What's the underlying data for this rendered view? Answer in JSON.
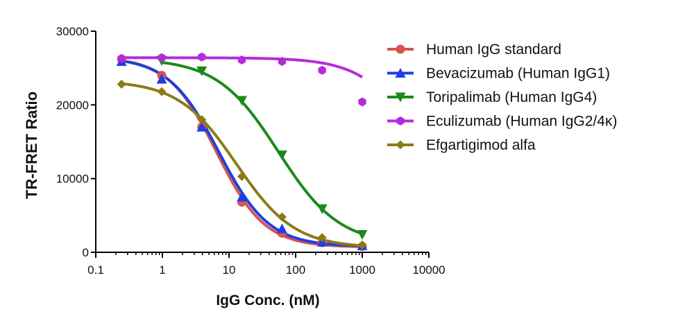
{
  "chart_data": {
    "type": "line",
    "xscale": "log",
    "xlabel": "IgG Conc. (nM)",
    "ylabel": "TR-FRET Ratio",
    "xlim": [
      0.1,
      10000
    ],
    "ylim": [
      0,
      30000
    ],
    "xticks": [
      0.1,
      1,
      10,
      100,
      1000,
      10000
    ],
    "xtick_labels": [
      "0.1",
      "1",
      "10",
      "100",
      "1000",
      "10000"
    ],
    "yticks": [
      0,
      10000,
      20000,
      30000
    ],
    "ytick_labels": [
      "0",
      "10000",
      "20000",
      "30000"
    ],
    "grid": false,
    "legend_position": "top-right",
    "x": [
      0.244,
      0.977,
      3.9,
      15.6,
      62.5,
      250,
      1000
    ],
    "series": [
      {
        "name": "Human IgG standard",
        "color": "#d9534f",
        "marker": "circle",
        "values": [
          26200,
          24000,
          17000,
          6800,
          2600,
          1300,
          800
        ],
        "fit": {
          "top": 26500,
          "bottom": 700,
          "ec50": 6.5,
          "hill": 1.2
        }
      },
      {
        "name": "Bevacizumab (Human IgG1)",
        "color": "#1f3fe0",
        "marker": "triangle-up",
        "values": [
          25900,
          23500,
          17000,
          7500,
          3200,
          1400,
          900
        ],
        "fit": {
          "top": 26500,
          "bottom": 800,
          "ec50": 7.0,
          "hill": 1.15
        }
      },
      {
        "name": "Toripalimab (Human IgG4)",
        "color": "#1a8a1a",
        "marker": "triangle-down",
        "values": [
          null,
          26000,
          24600,
          20600,
          13200,
          5900,
          2400
        ],
        "fit": {
          "top": 26300,
          "bottom": 1000,
          "ec50": 55,
          "hill": 0.95
        }
      },
      {
        "name": "Eculizumab (Human IgG2/4κ)",
        "color": "#b52bd9",
        "marker": "hexagon",
        "values": [
          26300,
          26400,
          26500,
          26100,
          25900,
          24700,
          20400
        ],
        "fit": {
          "top": 26400,
          "bottom": 0,
          "ec50": 9000,
          "hill": 1.0
        }
      },
      {
        "name": "Efgartigimod alfa",
        "color": "#8c7a16",
        "marker": "diamond",
        "values": [
          22800,
          21800,
          18000,
          10300,
          4800,
          2000,
          1000
        ],
        "fit": {
          "top": 23300,
          "bottom": 600,
          "ec50": 13,
          "hill": 1.0
        }
      }
    ]
  }
}
